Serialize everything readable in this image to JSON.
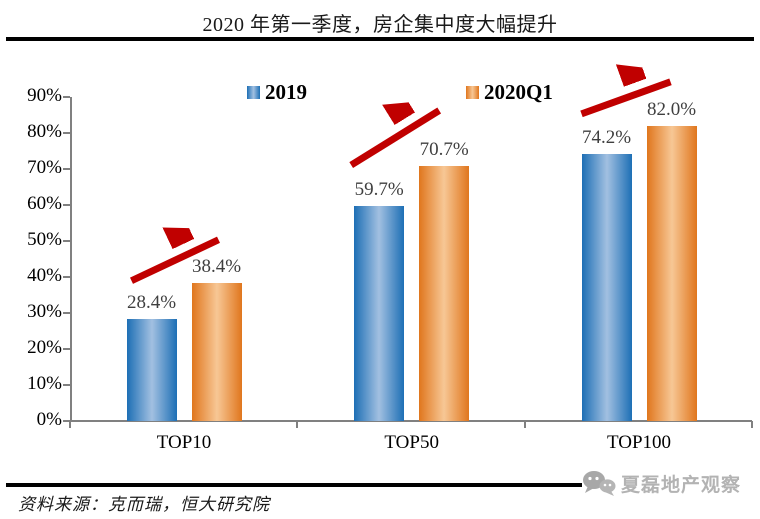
{
  "title": "2020 年第一季度，房企集中度大幅提升",
  "source_note": "资料来源：克而瑞，恒大研究院",
  "watermark": {
    "label": "夏磊地产观察",
    "icon": "wechat-icon"
  },
  "colors": {
    "series_2019_edge": "#1d6fb5",
    "series_2019_center": "#a2c0e1",
    "series_2020q1_edge": "#e0761d",
    "series_2020q1_center": "#f7c795",
    "arrow": "#c00000",
    "axis": "#808080",
    "value_label": "#3f3f3f",
    "watermark_gray": "#b3b3b3"
  },
  "chart_data": {
    "type": "bar",
    "categories": [
      "TOP10",
      "TOP50",
      "TOP100"
    ],
    "series": [
      {
        "name": "2019",
        "values": [
          28.4,
          59.7,
          74.2
        ],
        "color": "#1d6fb5"
      },
      {
        "name": "2020Q1",
        "values": [
          38.4,
          70.7,
          82.0
        ],
        "color": "#e0761d"
      }
    ],
    "value_labels": [
      [
        "28.4%",
        "59.7%",
        "74.2%"
      ],
      [
        "38.4%",
        "70.7%",
        "82.0%"
      ]
    ],
    "y_tick_labels": [
      "0%",
      "10%",
      "20%",
      "30%",
      "40%",
      "50%",
      "60%",
      "70%",
      "80%",
      "90%"
    ],
    "ylim": [
      0,
      90
    ],
    "grid": false,
    "legend_position": "top",
    "annotations": [
      {
        "type": "arrow",
        "category": "TOP10",
        "meaning": "increase"
      },
      {
        "type": "arrow",
        "category": "TOP50",
        "meaning": "increase"
      },
      {
        "type": "arrow",
        "category": "TOP100",
        "meaning": "increase"
      }
    ]
  }
}
